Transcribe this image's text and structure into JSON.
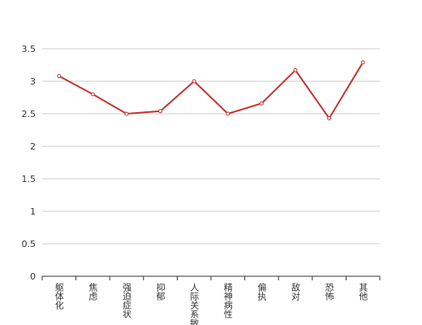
{
  "chart_data": {
    "type": "line",
    "categories": [
      "躯体化",
      "焦虑",
      "强迫症状",
      "抑郁",
      "人际关系敏感",
      "精神病性",
      "偏执",
      "敌对",
      "恐怖",
      "其他"
    ],
    "values": [
      3.08,
      2.8,
      2.5,
      2.54,
      3.0,
      2.5,
      2.66,
      3.17,
      2.43,
      3.29
    ],
    "color": "#c23531",
    "ylim": [
      0,
      3.5
    ],
    "yticks": [
      0,
      0.5,
      1,
      1.5,
      2,
      2.5,
      3,
      3.5
    ],
    "grid": true
  }
}
